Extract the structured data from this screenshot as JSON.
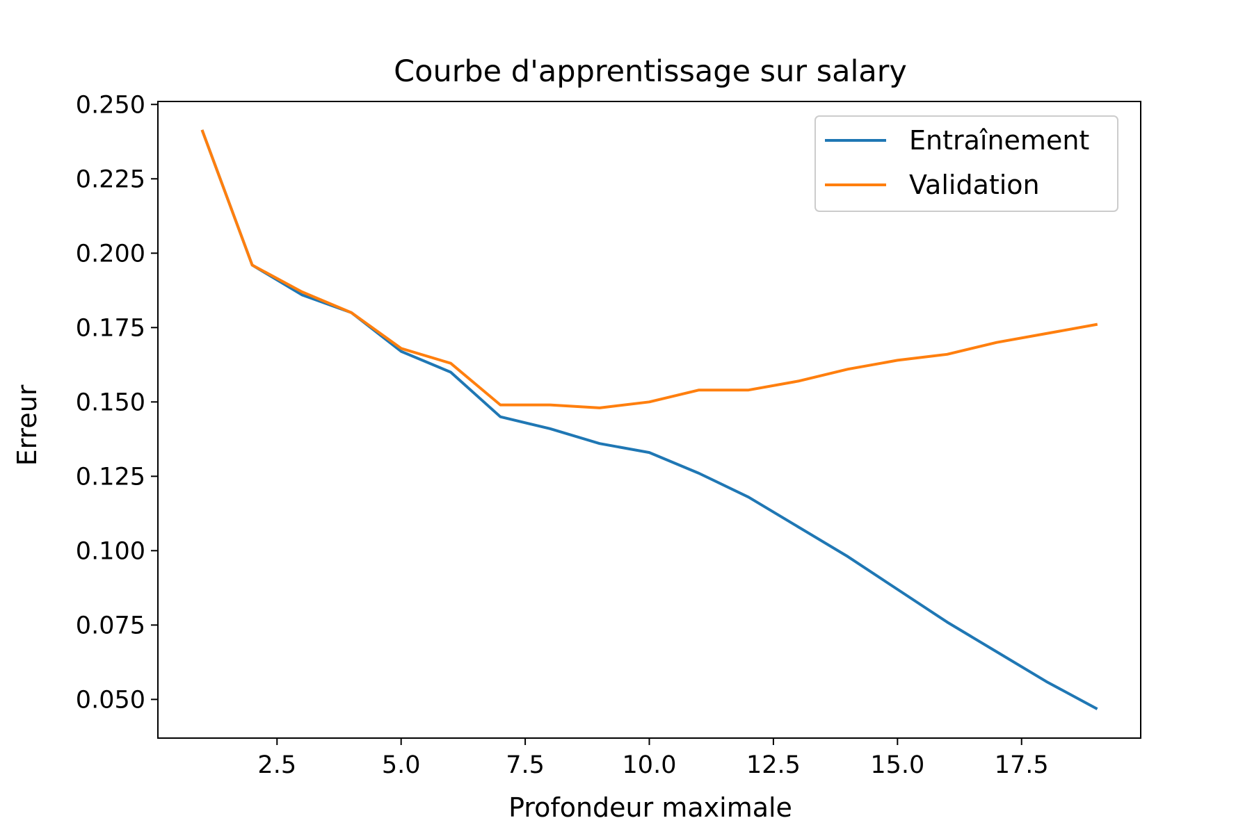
{
  "chart_data": {
    "type": "line",
    "title": "Courbe d'apprentissage sur salary",
    "xlabel": "Profondeur maximale",
    "ylabel": "Erreur",
    "xlim": [
      0.1,
      19.9
    ],
    "ylim": [
      0.037,
      0.251
    ],
    "xticks": [
      2.5,
      5.0,
      7.5,
      10.0,
      12.5,
      15.0,
      17.5
    ],
    "xtick_labels": [
      "2.5",
      "5.0",
      "7.5",
      "10.0",
      "12.5",
      "15.0",
      "17.5"
    ],
    "yticks": [
      0.05,
      0.075,
      0.1,
      0.125,
      0.15,
      0.175,
      0.2,
      0.225,
      0.25
    ],
    "ytick_labels": [
      "0.050",
      "0.075",
      "0.100",
      "0.125",
      "0.150",
      "0.175",
      "0.200",
      "0.225",
      "0.250"
    ],
    "grid": false,
    "legend_position": "top-right",
    "x": [
      1,
      2,
      3,
      4,
      5,
      6,
      7,
      8,
      9,
      10,
      11,
      12,
      13,
      14,
      15,
      16,
      17,
      18,
      19
    ],
    "series": [
      {
        "name": "Entraînement",
        "color": "#1f77b4",
        "values": [
          0.241,
          0.196,
          0.186,
          0.18,
          0.167,
          0.16,
          0.145,
          0.141,
          0.136,
          0.133,
          0.126,
          0.118,
          0.108,
          0.098,
          0.087,
          0.076,
          0.066,
          0.056,
          0.047
        ]
      },
      {
        "name": "Validation",
        "color": "#ff7f0e",
        "values": [
          0.241,
          0.196,
          0.187,
          0.18,
          0.168,
          0.163,
          0.149,
          0.149,
          0.148,
          0.15,
          0.154,
          0.154,
          0.157,
          0.161,
          0.164,
          0.166,
          0.17,
          0.173,
          0.176
        ]
      }
    ]
  }
}
